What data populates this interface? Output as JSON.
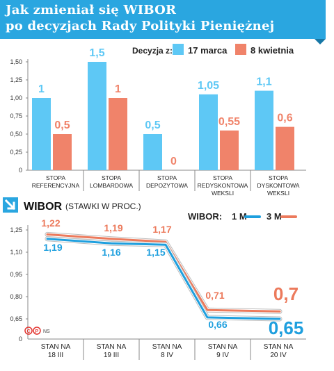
{
  "header": {
    "title_line1": "Jak zmieniał się WIBOR",
    "title_line2": "po decyzjach Rady Polityki Pieniężnej"
  },
  "colors": {
    "header": "#2aa6e0",
    "series_a": "#5ec8f5",
    "series_b": "#f0836a",
    "line_a": "#1e9fde",
    "line_b": "#ec7a5c",
    "axis": "#8a8a8a"
  },
  "chart_data": [
    {
      "type": "bar",
      "legend_title": "Decyzja z:",
      "series": [
        {
          "name": "17 marca",
          "values": [
            1,
            1.5,
            0.5,
            1.05,
            1.1
          ],
          "labels": [
            "1",
            "1,5",
            "0,5",
            "1,05",
            "1,1"
          ]
        },
        {
          "name": "8 kwietnia",
          "values": [
            0.5,
            1,
            0,
            0.55,
            0.6
          ],
          "labels": [
            "0,5",
            "1",
            "0",
            "0,55",
            "0,6"
          ]
        }
      ],
      "categories": [
        [
          "STOPA",
          "REFERENCYJNA"
        ],
        [
          "STOPA",
          "LOMBARDOWA"
        ],
        [
          "STOPA",
          "DEPOZYTOWA"
        ],
        [
          "STOPA",
          "REDYSKONTOWA",
          "WEKSLI"
        ],
        [
          "STOPA",
          "DYSKONTOWA",
          "WEKSLI"
        ]
      ],
      "ylim": [
        0,
        1.5
      ],
      "yticks": [
        0,
        0.25,
        0.5,
        0.75,
        1,
        1.25,
        1.5
      ],
      "ytick_labels": [
        "0",
        "0,25",
        "0,50",
        "0,75",
        "1,00",
        "1,25",
        "1,50"
      ],
      "grid": false,
      "legend_position": "top-right"
    },
    {
      "type": "line",
      "title": "WIBOR",
      "subtitle": "(STAWKI W PROC.)",
      "legend_title": "WIBOR:",
      "series": [
        {
          "name": "1 M",
          "values": [
            1.19,
            1.16,
            1.15,
            0.66,
            0.65
          ],
          "labels": [
            "1,19",
            "1,16",
            "1,15",
            "0,66",
            "0,65"
          ]
        },
        {
          "name": "3 M",
          "values": [
            1.22,
            1.19,
            1.17,
            0.71,
            0.7
          ],
          "labels": [
            "1,22",
            "1,19",
            "1,17",
            "0,71",
            "0,7"
          ]
        }
      ],
      "categories": [
        [
          "STAN NA",
          "18 III"
        ],
        [
          "STAN NA",
          "19 III"
        ],
        [
          "STAN NA",
          "8 IV"
        ],
        [
          "STAN NA",
          "9 IV"
        ],
        [
          "STAN NA",
          "20 IV"
        ]
      ],
      "yticks": [
        0.65,
        0.8,
        0.95,
        1.1,
        1.25
      ],
      "ytick_labels": [
        "0,65",
        "0,80",
        "0,95",
        "1,10",
        "1,25"
      ],
      "y_zero_label": "0",
      "ylim": [
        0.5,
        1.3
      ],
      "grid": false,
      "legend_position": "top-right"
    }
  ],
  "credit": "NS"
}
